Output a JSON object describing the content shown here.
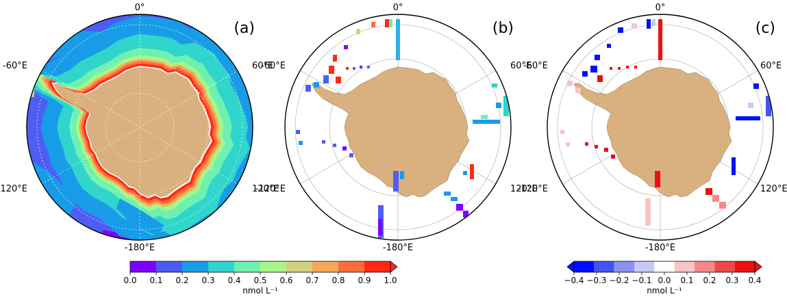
{
  "panels": [
    {
      "tag": "(a)",
      "lon_labels": {
        "top": "0°",
        "left_top": "-60°E",
        "right_top": "60°E",
        "left_bottom": "-120°E",
        "right_bottom": "120°E",
        "bottom": "-180°E"
      }
    },
    {
      "tag": "(b)",
      "lon_labels": {
        "top": "0°",
        "left_top": "-60°E",
        "right_top": "60°E",
        "left_bottom": "-120°E",
        "right_bottom": "120°E",
        "bottom": "-180°E"
      }
    },
    {
      "tag": "(c)",
      "lon_labels": {
        "top": "0°",
        "left_top": "-60°E",
        "right_top": "60°E",
        "left_bottom": "-120°E",
        "right_bottom": "120°E",
        "bottom": "-180°E"
      }
    }
  ],
  "colorbar_left": {
    "ticks": [
      "0.0",
      "0.1",
      "0.2",
      "0.3",
      "0.4",
      "0.5",
      "0.6",
      "0.7",
      "0.8",
      "0.9",
      "1.0"
    ],
    "unit": "nmol L⁻¹",
    "colors": [
      "#8000ff",
      "#4c5cf2",
      "#189ce8",
      "#30d5cc",
      "#6ef0b0",
      "#a8f58a",
      "#d2d27e",
      "#f5a855",
      "#ff6d3a",
      "#ff2a16"
    ]
  },
  "colorbar_right": {
    "ticks": [
      "−0.4",
      "−0.3",
      "−0.2",
      "−0.1",
      "0.0",
      "0.1",
      "0.2",
      "0.3",
      "0.4"
    ],
    "unit": "nmol L⁻¹",
    "colors": [
      "#0010ff",
      "#4255f3",
      "#8c92f5",
      "#c8c9f7",
      "#ffffff",
      "#f8c4c4",
      "#f58a8a",
      "#f0474a",
      "#ee1010"
    ]
  },
  "colors": {
    "land": "#d9b07f",
    "ocean_bg": "#4e5ef4",
    "ring": "#000000",
    "grid": "#bbbbbb"
  }
}
